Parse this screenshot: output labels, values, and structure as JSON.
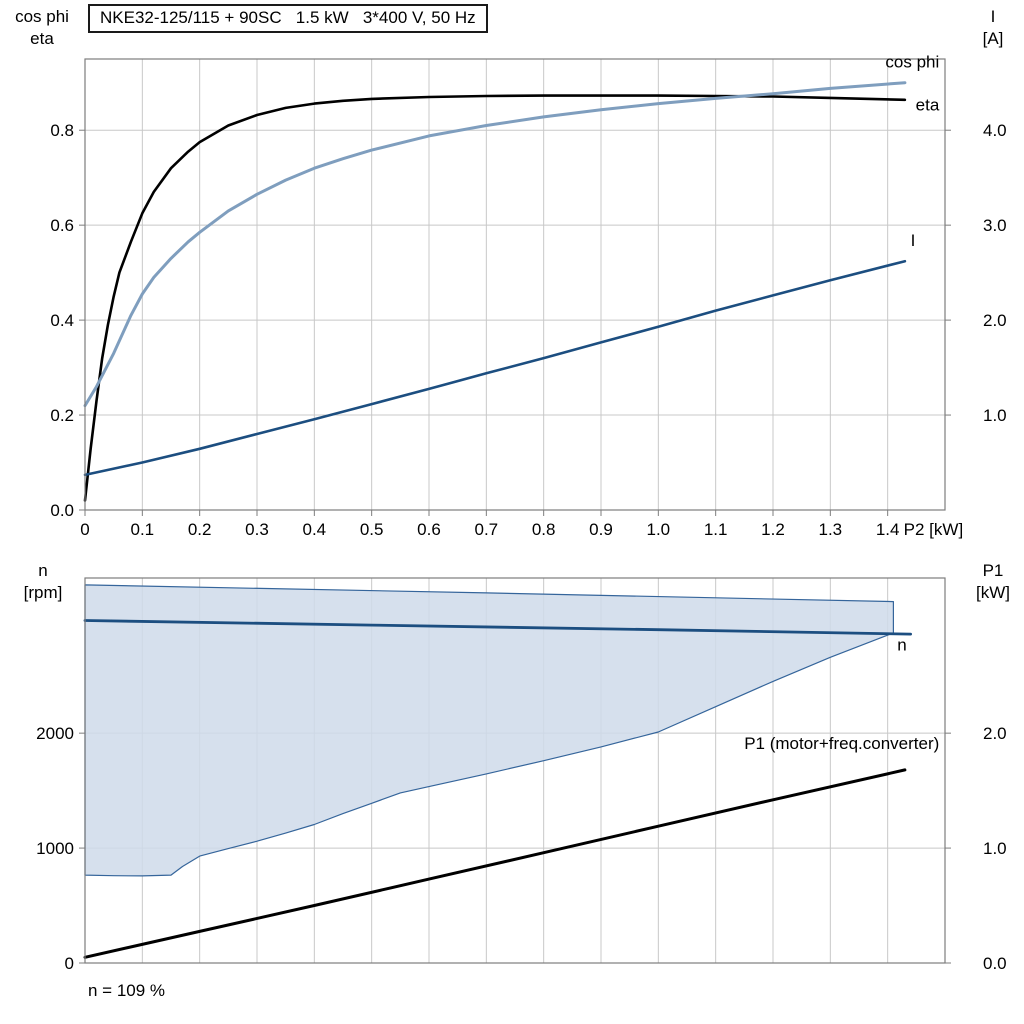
{
  "theme": {
    "background": "#ffffff",
    "grid_color": "#c8c8c8",
    "frame_color": "#7d7d7d",
    "text_color": "#000000",
    "accent_dark_blue": "#1c4e80",
    "accent_light_blue": "#7f9ebe",
    "area_fill": "#cfdbea"
  },
  "chart_data": [
    {
      "type": "line",
      "title": "NKE32-125/115 + 90SC   1.5 kW   3*400 V, 50 Hz",
      "grid": true,
      "legend_position": "inline-labels",
      "x_axis": {
        "label": "P2 [kW]",
        "min": 0,
        "max": 1.5,
        "ticks": [
          0,
          0.1,
          0.2,
          0.3,
          0.4,
          0.5,
          0.6,
          0.7,
          0.8,
          0.9,
          1.0,
          1.1,
          1.2,
          1.3,
          1.4
        ],
        "tick_labels": [
          "0",
          "0.1",
          "0.2",
          "0.3",
          "0.4",
          "0.5",
          "0.6",
          "0.7",
          "0.8",
          "0.9",
          "1.0",
          "1.1",
          "1.2",
          "1.3",
          "1.4"
        ]
      },
      "y_left": {
        "axis_title_lines": [
          "cos phi",
          "eta"
        ],
        "min": 0,
        "max": 0.95,
        "ticks": [
          0,
          0.2,
          0.4,
          0.6,
          0.8
        ],
        "tick_labels": [
          "0.0",
          "0.2",
          "0.4",
          "0.6",
          "0.8"
        ]
      },
      "y_right": {
        "axis_title_lines": [
          "I",
          "[A]"
        ],
        "min": 0,
        "max": 4.75,
        "ticks": [
          1,
          2,
          3,
          4
        ],
        "tick_labels": [
          "1.0",
          "2.0",
          "3.0",
          "4.0"
        ]
      },
      "series": [
        {
          "name": "eta",
          "label": "eta",
          "label_pos": [
            1.49,
            0.842
          ],
          "label_anchor": "end",
          "axis": "left",
          "color": "#000000",
          "width": 2.6,
          "points": [
            [
              0,
              0.02
            ],
            [
              0.01,
              0.13
            ],
            [
              0.02,
              0.23
            ],
            [
              0.03,
              0.32
            ],
            [
              0.04,
              0.39
            ],
            [
              0.05,
              0.45
            ],
            [
              0.06,
              0.5
            ],
            [
              0.08,
              0.565
            ],
            [
              0.1,
              0.625
            ],
            [
              0.12,
              0.67
            ],
            [
              0.15,
              0.72
            ],
            [
              0.18,
              0.755
            ],
            [
              0.2,
              0.775
            ],
            [
              0.25,
              0.81
            ],
            [
              0.3,
              0.832
            ],
            [
              0.35,
              0.847
            ],
            [
              0.4,
              0.856
            ],
            [
              0.45,
              0.862
            ],
            [
              0.5,
              0.866
            ],
            [
              0.6,
              0.87
            ],
            [
              0.7,
              0.872
            ],
            [
              0.8,
              0.873
            ],
            [
              0.9,
              0.873
            ],
            [
              1.0,
              0.873
            ],
            [
              1.1,
              0.872
            ],
            [
              1.2,
              0.871
            ],
            [
              1.3,
              0.868
            ],
            [
              1.43,
              0.864
            ]
          ]
        },
        {
          "name": "cos-phi",
          "label": "cos phi",
          "label_pos": [
            1.49,
            0.932
          ],
          "label_anchor": "end",
          "axis": "left",
          "color": "#7f9ebe",
          "width": 3,
          "points": [
            [
              0,
              0.22
            ],
            [
              0.02,
              0.26
            ],
            [
              0.05,
              0.33
            ],
            [
              0.08,
              0.41
            ],
            [
              0.1,
              0.455
            ],
            [
              0.12,
              0.49
            ],
            [
              0.15,
              0.53
            ],
            [
              0.18,
              0.565
            ],
            [
              0.2,
              0.585
            ],
            [
              0.25,
              0.63
            ],
            [
              0.3,
              0.665
            ],
            [
              0.35,
              0.695
            ],
            [
              0.4,
              0.72
            ],
            [
              0.45,
              0.74
            ],
            [
              0.5,
              0.758
            ],
            [
              0.6,
              0.788
            ],
            [
              0.7,
              0.81
            ],
            [
              0.8,
              0.828
            ],
            [
              0.9,
              0.843
            ],
            [
              1.0,
              0.856
            ],
            [
              1.1,
              0.867
            ],
            [
              1.2,
              0.877
            ],
            [
              1.3,
              0.888
            ],
            [
              1.43,
              0.9
            ]
          ]
        },
        {
          "name": "current",
          "label": "I",
          "label_pos": [
            1.44,
            2.78
          ],
          "label_anchor": "start",
          "axis": "right",
          "color": "#1c4e80",
          "width": 2.6,
          "points": [
            [
              0,
              0.37
            ],
            [
              0.1,
              0.5
            ],
            [
              0.2,
              0.645
            ],
            [
              0.3,
              0.8
            ],
            [
              0.4,
              0.955
            ],
            [
              0.5,
              1.115
            ],
            [
              0.6,
              1.275
            ],
            [
              0.7,
              1.44
            ],
            [
              0.8,
              1.6
            ],
            [
              0.9,
              1.765
            ],
            [
              1.0,
              1.93
            ],
            [
              1.1,
              2.1
            ],
            [
              1.2,
              2.26
            ],
            [
              1.3,
              2.42
            ],
            [
              1.43,
              2.62
            ]
          ]
        }
      ]
    },
    {
      "type": "line",
      "grid": true,
      "annotation": "n = 109 %",
      "x_axis": {
        "min": 0,
        "max": 1.5,
        "ticks": [
          0,
          0.1,
          0.2,
          0.3,
          0.4,
          0.5,
          0.6,
          0.7,
          0.8,
          0.9,
          1.0,
          1.1,
          1.2,
          1.3,
          1.4
        ],
        "tick_labels": null
      },
      "y_left": {
        "axis_title_lines": [
          "n",
          "[rpm]"
        ],
        "min": 0,
        "max": 3350,
        "ticks": [
          0,
          1000,
          2000
        ],
        "tick_labels": [
          "0",
          "1000",
          "2000"
        ]
      },
      "y_right": {
        "axis_title_lines": [
          "P1",
          "[kW]"
        ],
        "min": 0,
        "max": 3.35,
        "ticks": [
          0,
          1,
          2
        ],
        "tick_labels": [
          "0.0",
          "1.0",
          "2.0"
        ]
      },
      "series": [
        {
          "name": "speed-range",
          "type": "area",
          "axis": "left",
          "color": "#35659b",
          "width": 1.2,
          "fill": "#cfdbea",
          "fill_opacity": 0.85,
          "points": [
            [
              0,
              3290
            ],
            [
              0.7,
              3220
            ],
            [
              1.41,
              3145
            ],
            [
              1.41,
              2872
            ],
            [
              1.3,
              2660
            ],
            [
              1.2,
              2450
            ],
            [
              1.1,
              2230
            ],
            [
              1.0,
              2010
            ],
            [
              0.9,
              1880
            ],
            [
              0.8,
              1760
            ],
            [
              0.7,
              1645
            ],
            [
              0.6,
              1535
            ],
            [
              0.55,
              1480
            ],
            [
              0.5,
              1390
            ],
            [
              0.45,
              1300
            ],
            [
              0.4,
              1205
            ],
            [
              0.35,
              1130
            ],
            [
              0.3,
              1060
            ],
            [
              0.25,
              995
            ],
            [
              0.2,
              930
            ],
            [
              0.17,
              840
            ],
            [
              0.15,
              765
            ],
            [
              0.1,
              758
            ],
            [
              0.05,
              760
            ],
            [
              0,
              765
            ]
          ]
        },
        {
          "name": "n",
          "label": "n",
          "label_pos": [
            1.425,
            2720
          ],
          "label_anchor": "middle",
          "axis": "left",
          "color": "#1c4e80",
          "width": 2.8,
          "points": [
            [
              0,
              2980
            ],
            [
              0.5,
              2940
            ],
            [
              1.0,
              2900
            ],
            [
              1.44,
              2862
            ]
          ]
        },
        {
          "name": "p1",
          "label": "P1 (motor+freq.converter)",
          "label_pos": [
            1.49,
            1.86
          ],
          "label_anchor": "end",
          "label_color": "#000000",
          "axis": "right",
          "color": "#000000",
          "width": 3,
          "points": [
            [
              0,
              0.05
            ],
            [
              0.2,
              0.275
            ],
            [
              0.4,
              0.5
            ],
            [
              0.6,
              0.73
            ],
            [
              0.8,
              0.96
            ],
            [
              1.0,
              1.19
            ],
            [
              1.2,
              1.42
            ],
            [
              1.43,
              1.68
            ]
          ]
        }
      ]
    }
  ]
}
